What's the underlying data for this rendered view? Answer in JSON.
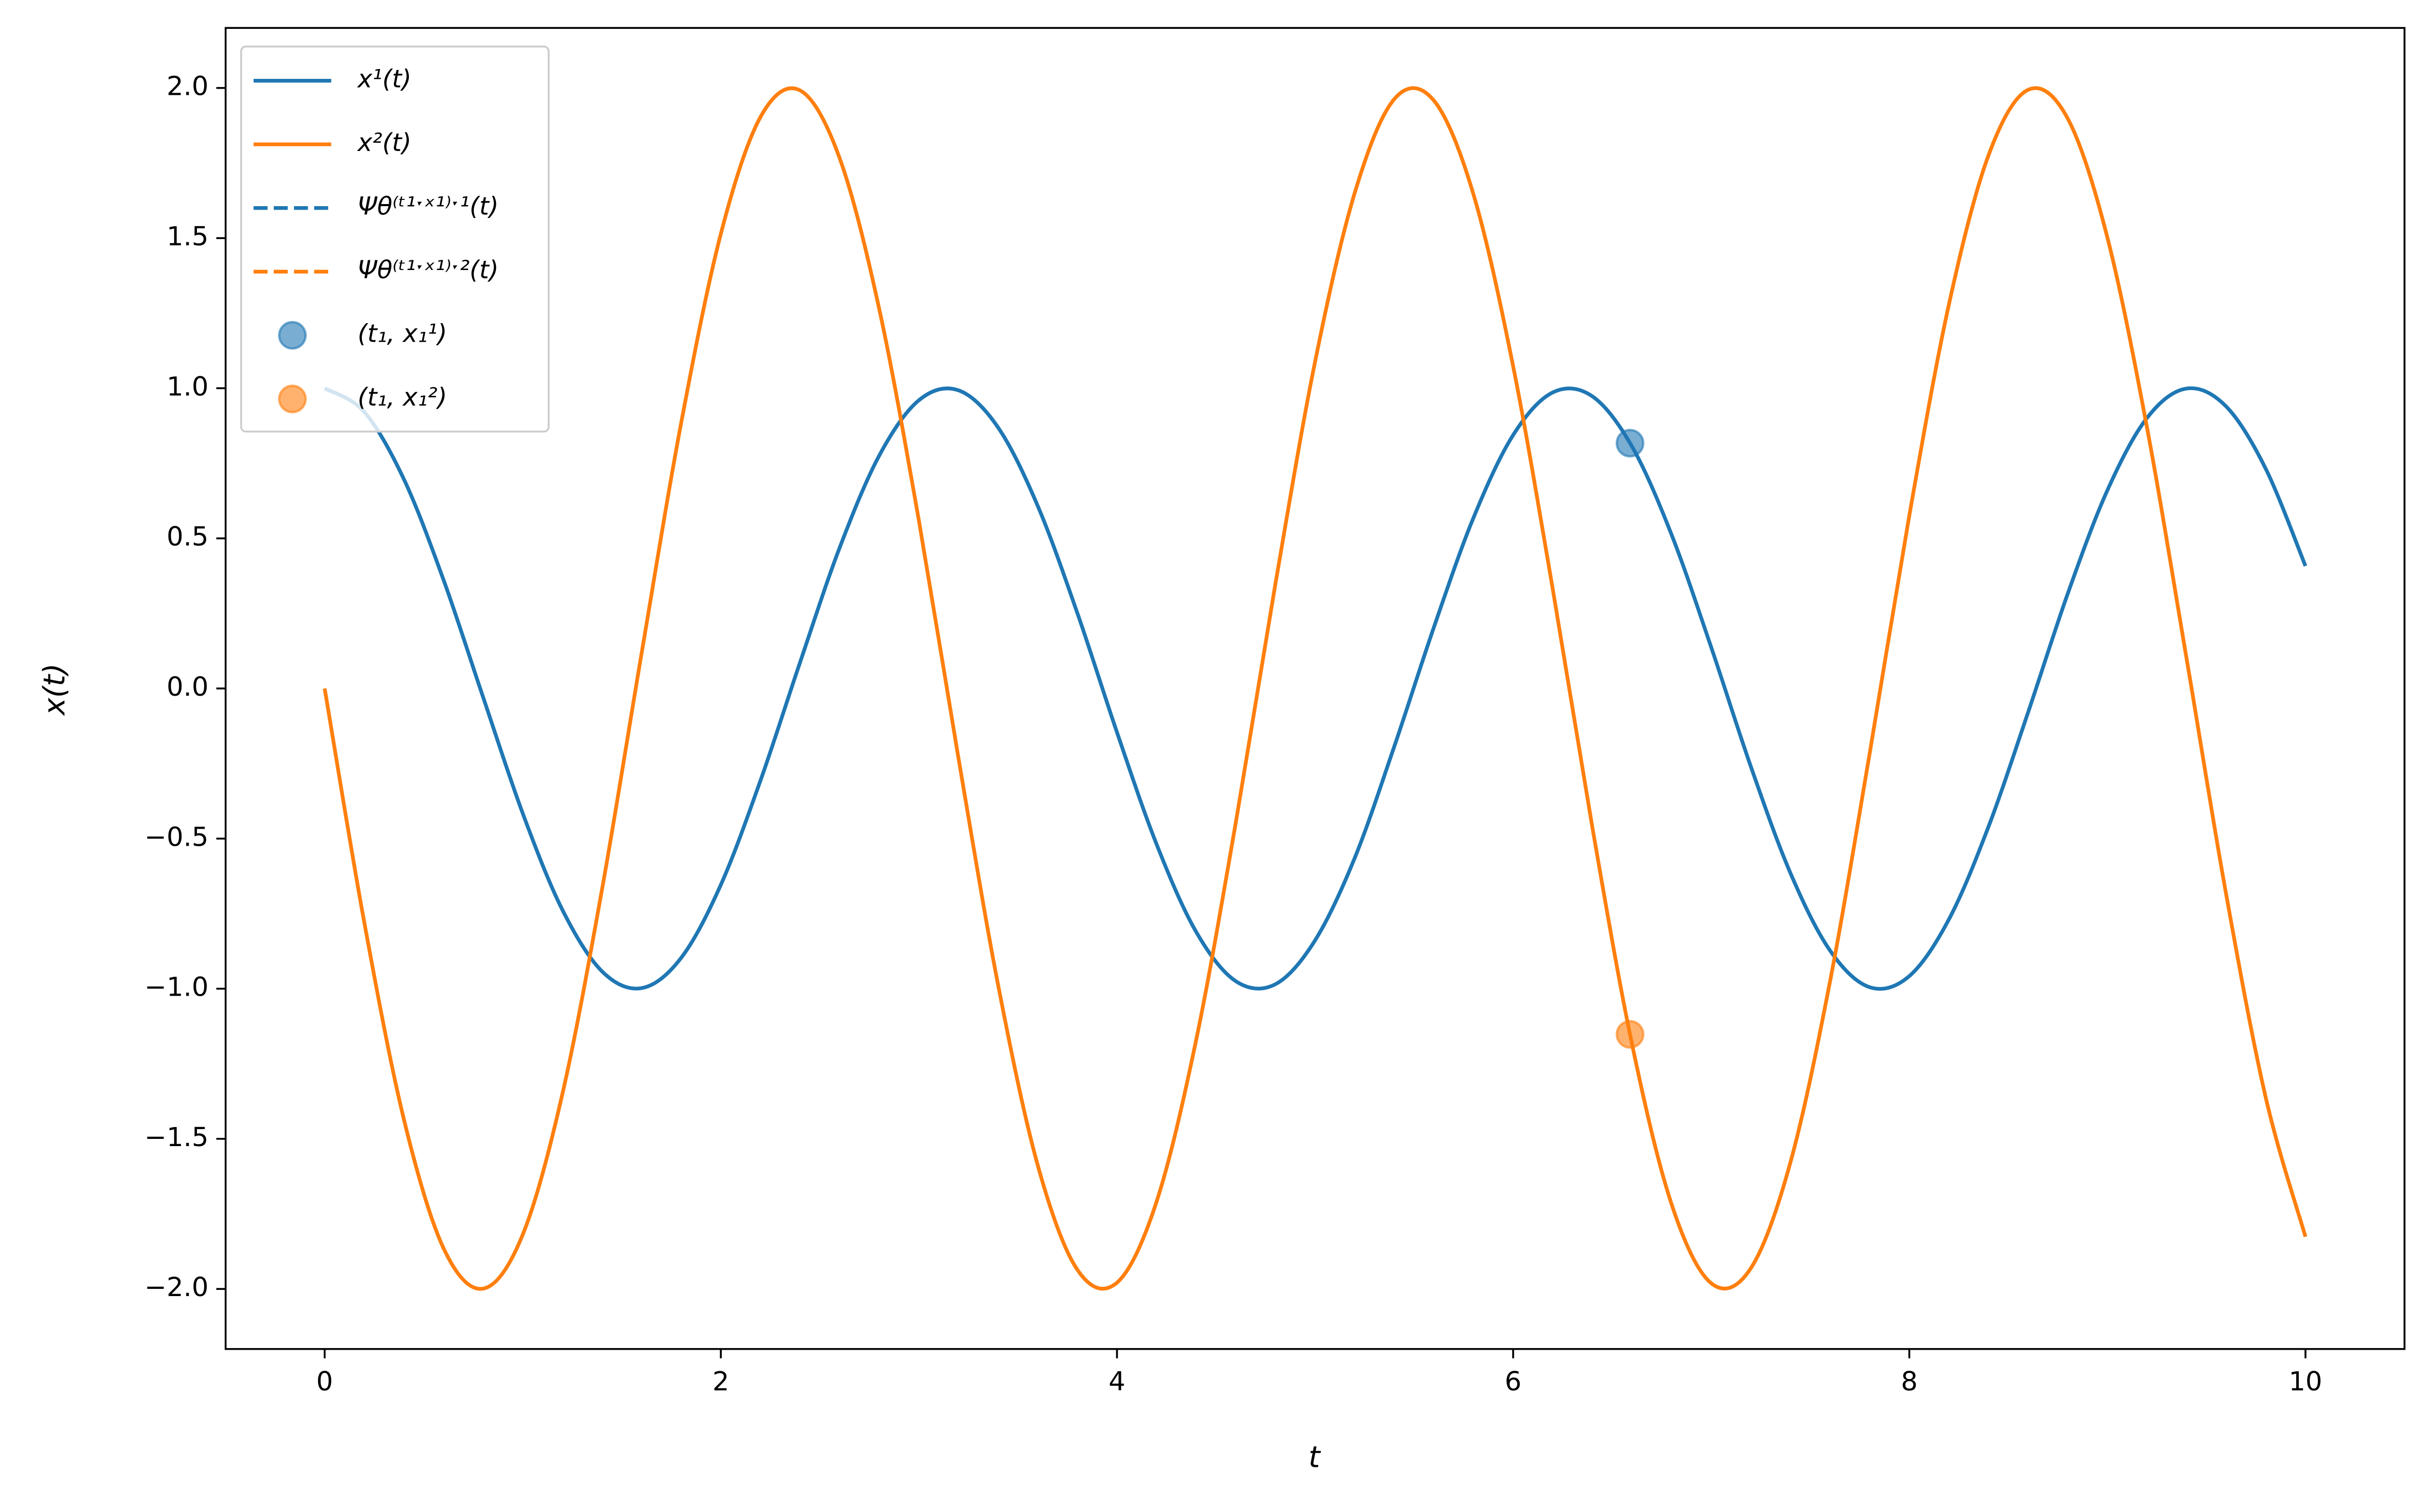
{
  "chart_data": {
    "type": "line",
    "xlabel": "t",
    "ylabel": "x(t)",
    "xlim": [
      -0.5,
      10.5
    ],
    "ylim": [
      -2.2,
      2.2
    ],
    "xticks": [
      0,
      2,
      4,
      6,
      8,
      10
    ],
    "yticks": [
      {
        "value": -2,
        "label": "−2.0"
      },
      {
        "value": -1.5,
        "label": "−1.5"
      },
      {
        "value": -1,
        "label": "−1.0"
      },
      {
        "value": -0.5,
        "label": "−0.5"
      },
      {
        "value": 0,
        "label": "0.0"
      },
      0.5,
      {
        "value": 1,
        "label": "1.0"
      },
      1.5,
      {
        "value": 2,
        "label": "2.0"
      }
    ],
    "legend": "upper left",
    "x": [
      0,
      0.2,
      0.4,
      0.6,
      0.8,
      1,
      1.2,
      1.4,
      1.6,
      1.8,
      2,
      2.2,
      2.4,
      2.6,
      2.8,
      3,
      3.2,
      3.4,
      3.6,
      3.8,
      4,
      4.2,
      4.4,
      4.6,
      4.8,
      5,
      5.2,
      5.4,
      5.6,
      5.8,
      6,
      6.2,
      6.4,
      6.6,
      6.8,
      7,
      7.2,
      7.4,
      7.6,
      7.8,
      8,
      8.2,
      8.4,
      8.6,
      8.8,
      9,
      9.2,
      9.4,
      9.6,
      9.8,
      10
    ],
    "series": [
      {
        "name": "x¹(t)",
        "color": "#1f77b4",
        "linestyle": "solid",
        "values": [
          1,
          0.921,
          0.697,
          0.362,
          -0.029,
          -0.416,
          -0.737,
          -0.942,
          -0.998,
          -0.897,
          -0.654,
          -0.307,
          0.087,
          0.469,
          0.776,
          0.96,
          0.993,
          0.869,
          0.608,
          0.251,
          -0.146,
          -0.519,
          -0.811,
          -0.975,
          -0.985,
          -0.839,
          -0.565,
          -0.193,
          0.204,
          0.569,
          0.844,
          0.986,
          0.973,
          0.806,
          0.512,
          0.137,
          -0.26,
          -0.615,
          -0.873,
          -0.995,
          -0.958,
          -0.769,
          -0.46,
          -0.079,
          0.316,
          0.66,
          0.901,
          0.999,
          0.939,
          0.731,
          0.408
        ]
      },
      {
        "name": "x²(t)",
        "color": "#ff7f0e",
        "linestyle": "solid",
        "values": [
          0,
          -0.779,
          -1.435,
          -1.864,
          -1.999,
          -1.819,
          -1.351,
          -0.67,
          0.117,
          0.885,
          1.514,
          1.903,
          1.992,
          1.766,
          1.263,
          0.559,
          -0.233,
          -0.988,
          -1.588,
          -1.936,
          -1.979,
          -1.709,
          -1.17,
          -0.446,
          0.349,
          1.088,
          1.65,
          1.963,
          1.958,
          1.645,
          1.073,
          0.331,
          -0.463,
          -1.184,
          -1.718,
          -1.981,
          -1.931,
          -1.578,
          -0.975,
          -0.216,
          0.576,
          1.279,
          1.776,
          1.994,
          1.898,
          1.502,
          0.869,
          0.099,
          -0.687,
          -1.364,
          -1.826
        ]
      },
      {
        "name": "Ψθ⁽ᵗ¹ˑˣ¹⁾ˑ¹(t)",
        "color": "#1f77b4",
        "linestyle": "dashed",
        "values": [
          null,
          null,
          null,
          null,
          null,
          null,
          null,
          null,
          null,
          null,
          null,
          null,
          null,
          null,
          null,
          null,
          null,
          null,
          null,
          null,
          null,
          null,
          null,
          null,
          null,
          null,
          null,
          null,
          null,
          null,
          null,
          null,
          null,
          null,
          null,
          null,
          null,
          null,
          null,
          null,
          null,
          null,
          null,
          null,
          null,
          null,
          null,
          null,
          null,
          null,
          null
        ]
      },
      {
        "name": "Ψθ⁽ᵗ¹ˑˣ¹⁾ˑ²(t)",
        "color": "#ff7f0e",
        "linestyle": "dashed",
        "values": [
          null,
          null,
          null,
          null,
          null,
          null,
          null,
          null,
          null,
          null,
          null,
          null,
          null,
          null,
          null,
          null,
          null,
          null,
          null,
          null,
          null,
          null,
          null,
          null,
          null,
          null,
          null,
          null,
          null,
          null,
          null,
          null,
          null,
          null,
          null,
          null,
          null,
          null,
          null,
          null,
          null,
          null,
          null,
          null,
          null,
          null,
          null,
          null,
          null,
          null,
          null
        ]
      },
      {
        "name": "(t₁, x₁¹)",
        "color": "#1f77b4",
        "marker": "o",
        "x": [
          6.59
        ],
        "values": [
          0.817
        ]
      },
      {
        "name": "(t₁, x₁²)",
        "color": "#ff7f0e",
        "marker": "o",
        "x": [
          6.59
        ],
        "values": [
          -1.152
        ]
      }
    ]
  }
}
